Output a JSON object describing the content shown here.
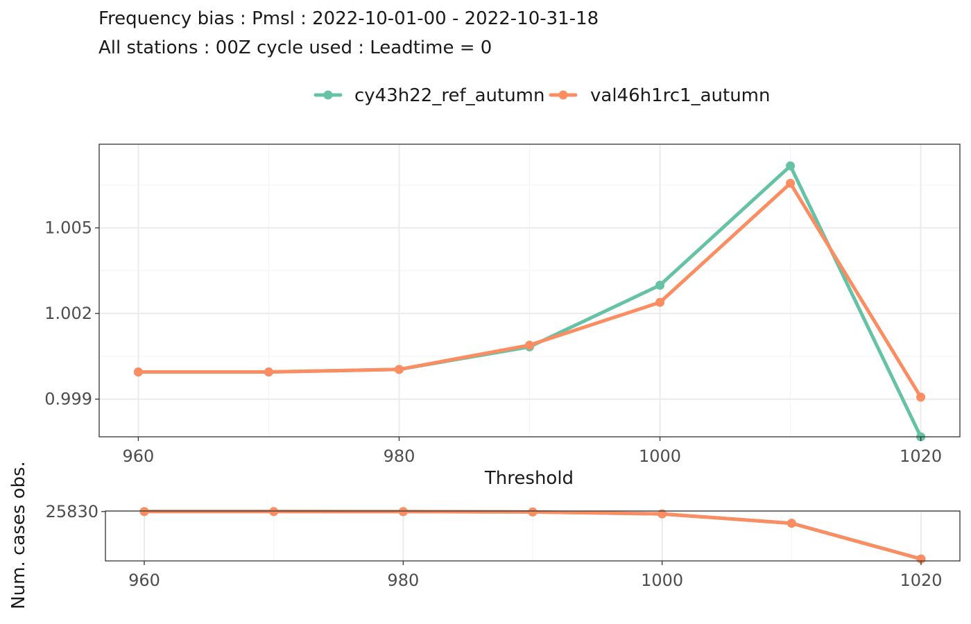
{
  "title": "Frequency bias : Pmsl : 2022-10-01-00 - 2022-10-31-18",
  "subtitle": "All stations : 00Z cycle used : Leadtime = 0",
  "colors": {
    "series_1": "#66c2a5",
    "series_2": "#fc8d62",
    "panel_border": "#333333",
    "grid_major": "#ebebeb",
    "grid_minor": "#f5f5f5"
  },
  "chart_data": [
    {
      "type": "line",
      "xlabel": "Threshold",
      "ylabel": "",
      "legend_position": "top",
      "grid": true,
      "x": [
        960,
        970,
        980,
        990,
        1000,
        1010,
        1020
      ],
      "xlim": [
        957,
        1023
      ],
      "ylim": [
        0.99768,
        1.00793
      ],
      "x_ticks": [
        960,
        980,
        1000,
        1020
      ],
      "x_tick_labels": [
        "960",
        "980",
        "1000",
        "1020"
      ],
      "y_ticks": [
        0.999,
        1.002,
        1.005
      ],
      "y_tick_labels": [
        "0.999",
        "1.002",
        "1.005"
      ],
      "series": [
        {
          "name": "cy43h22_ref_autumn",
          "color": "#66c2a5",
          "values": [
            0.99995,
            0.99995,
            1.00004,
            1.00083,
            1.00299,
            1.00717,
            0.99768
          ]
        },
        {
          "name": "val46h1rc1_autumn",
          "color": "#fc8d62",
          "values": [
            0.99995,
            0.99995,
            1.00004,
            1.00089,
            1.00239,
            1.00656,
            0.99907
          ]
        }
      ]
    },
    {
      "type": "line",
      "xlabel": "",
      "ylabel": "Num. cases obs.",
      "x": [
        960,
        970,
        980,
        990,
        1000,
        1010,
        1020
      ],
      "xlim": [
        957,
        1023
      ],
      "ylim": [
        0,
        26125
      ],
      "x_ticks": [
        960,
        980,
        1000,
        1020
      ],
      "x_tick_labels": [
        "960",
        "980",
        "1000",
        "1020"
      ],
      "y_ticks": [
        25830
      ],
      "y_tick_labels": [
        "25830"
      ],
      "series": [
        {
          "color": "#66c2a5",
          "values": [
            25830,
            25830,
            25800,
            25620,
            24600,
            19700,
            1000
          ]
        },
        {
          "color": "#fc8d62",
          "values": [
            25830,
            25830,
            25800,
            25620,
            24600,
            19700,
            1000
          ]
        }
      ]
    }
  ]
}
